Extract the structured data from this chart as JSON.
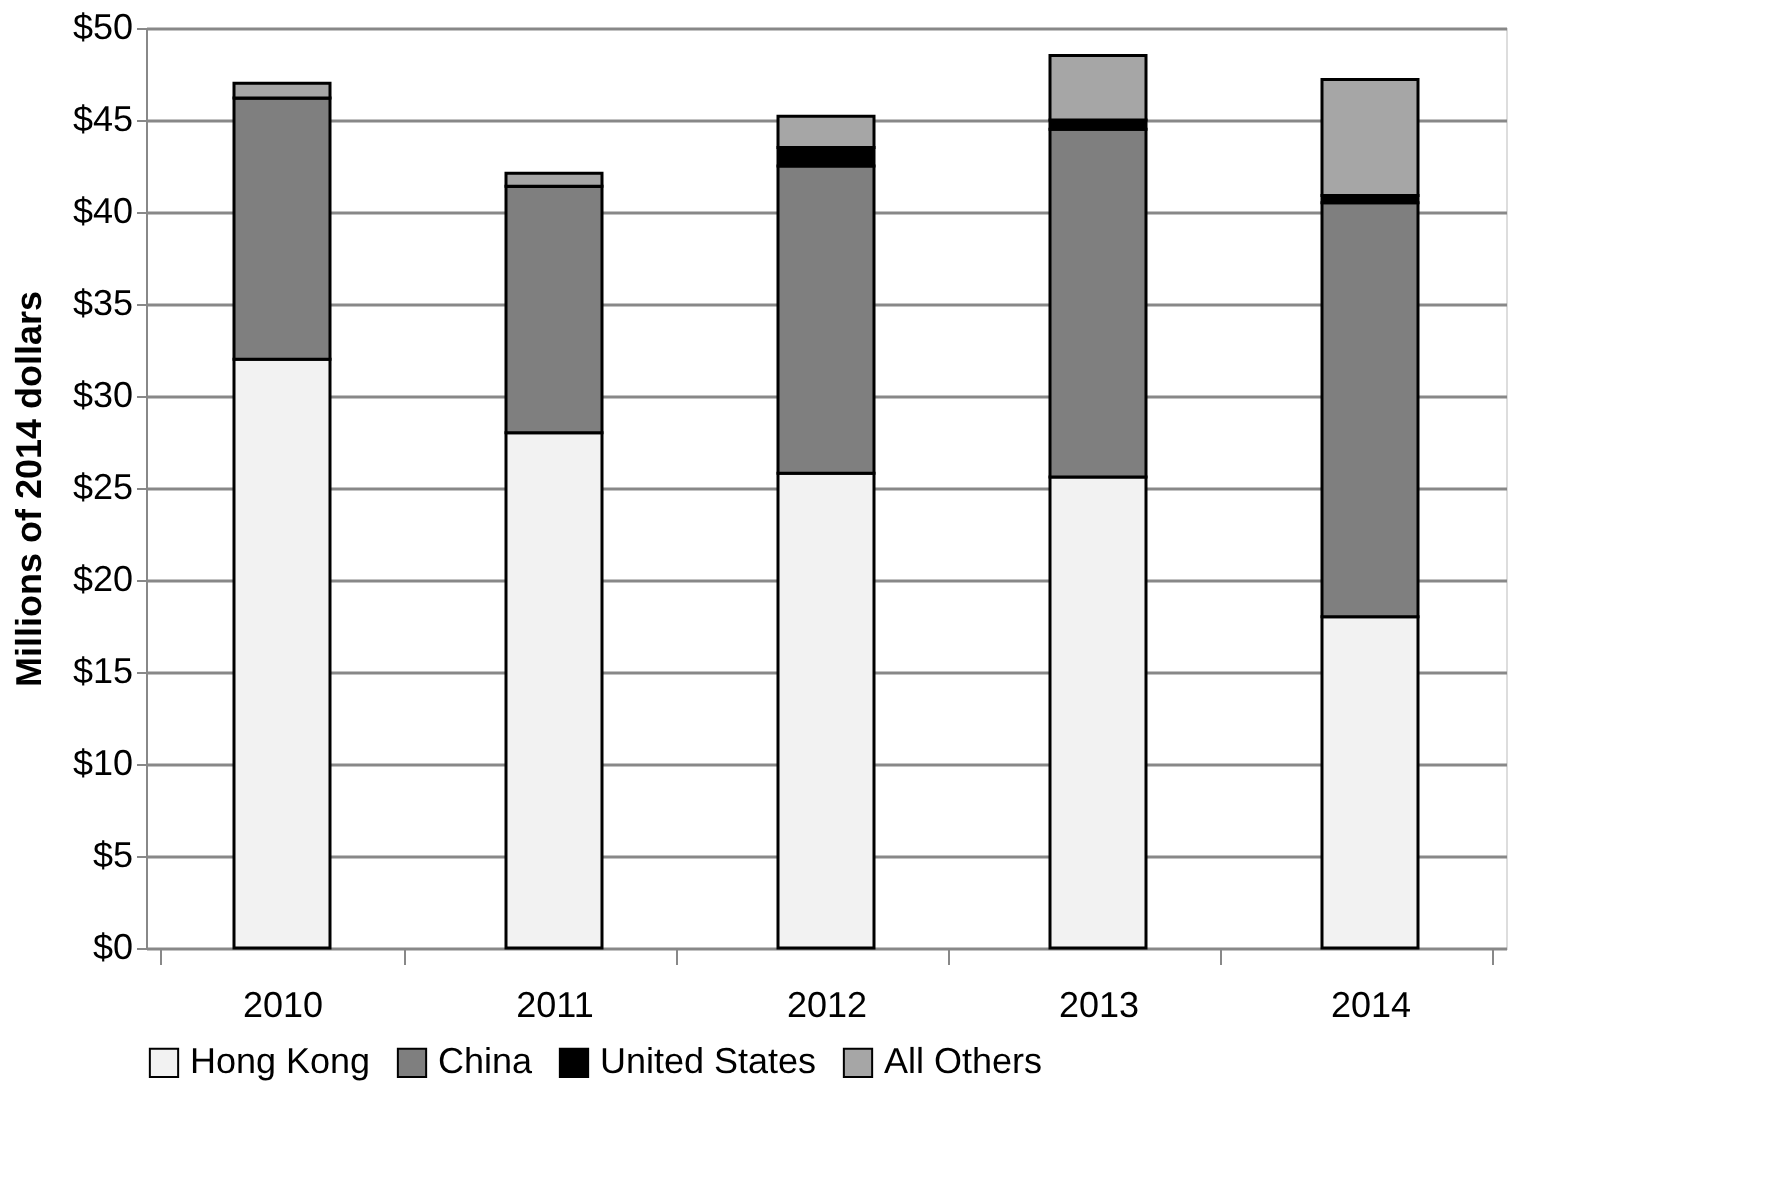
{
  "chart_data": {
    "type": "bar",
    "stacked": true,
    "ylabel": "Millions of 2014 dollars",
    "categories": [
      "2010",
      "2011",
      "2012",
      "2013",
      "2014"
    ],
    "series": [
      {
        "name": "Hong Kong",
        "color": "#f2f2f2",
        "values": [
          32,
          28,
          25.8,
          25.6,
          18
        ]
      },
      {
        "name": "China",
        "color": "#7f7f7f",
        "values": [
          14.2,
          13.4,
          16.7,
          18.9,
          22.5
        ]
      },
      {
        "name": "United States",
        "color": "#000000",
        "values": [
          0,
          0,
          1.0,
          0.5,
          0.4
        ]
      },
      {
        "name": "All Others",
        "color": "#a6a6a6",
        "values": [
          0.8,
          0.7,
          1.7,
          3.5,
          6.3
        ]
      }
    ],
    "ylim": [
      0,
      50
    ],
    "yticks": [
      {
        "value": 0,
        "label": "$0"
      },
      {
        "value": 5,
        "label": "$5"
      },
      {
        "value": 10,
        "label": "$10"
      },
      {
        "value": 15,
        "label": "$15"
      },
      {
        "value": 20,
        "label": "$20"
      },
      {
        "value": 25,
        "label": "$25"
      },
      {
        "value": 30,
        "label": "$30"
      },
      {
        "value": 35,
        "label": "$35"
      },
      {
        "value": 40,
        "label": "$40"
      },
      {
        "value": 45,
        "label": "$45"
      },
      {
        "value": 50,
        "label": "$50"
      }
    ],
    "grid": "y",
    "legend": "bottom"
  }
}
